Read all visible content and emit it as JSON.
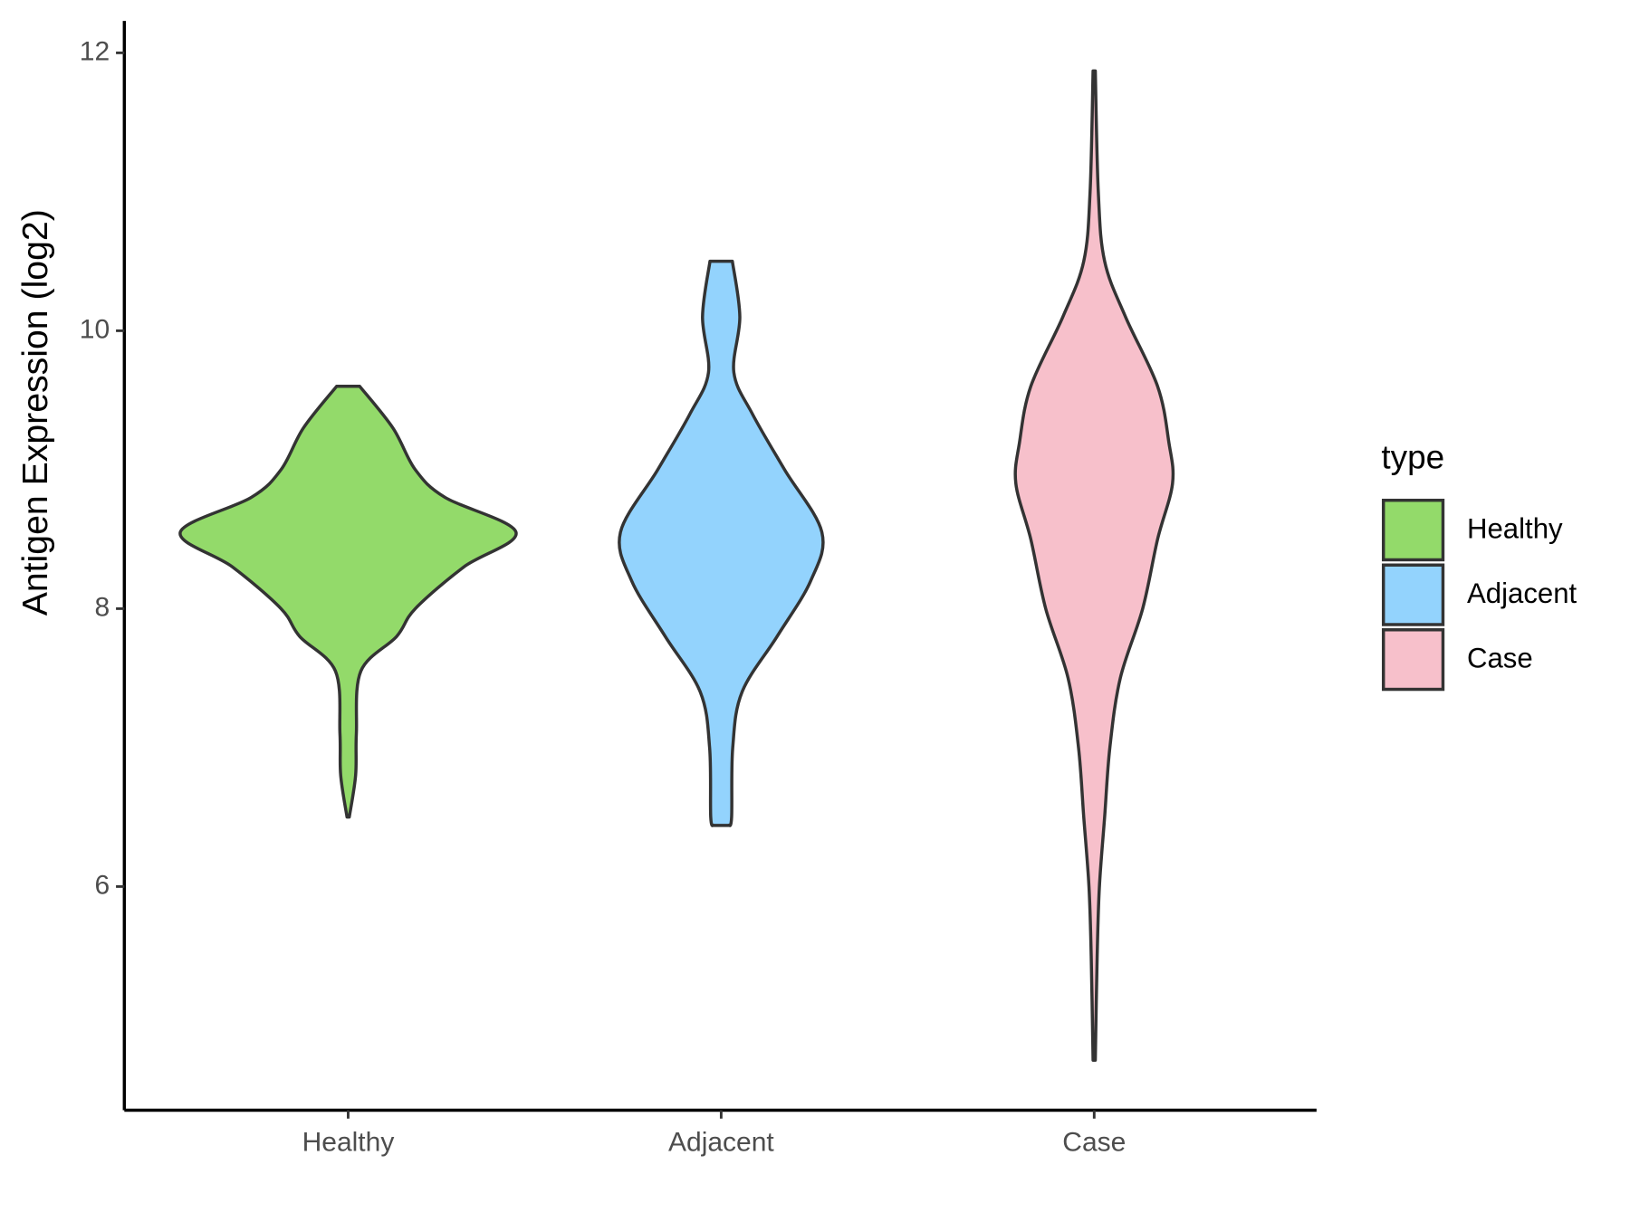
{
  "chart_data": {
    "type": "violin",
    "y_label": "Antigen Expression (log2)",
    "categories": [
      "Healthy",
      "Adjacent",
      "Case"
    ],
    "ylim": [
      4.39,
      12.23
    ],
    "yticks": [
      6,
      8,
      10,
      12
    ],
    "legend_title": "type",
    "legend": "right",
    "series": [
      {
        "name": "Healthy",
        "color": "#93da6a",
        "y": [
          9.6,
          9.3,
          9.0,
          8.8,
          8.55,
          8.3,
          8.0,
          7.8,
          7.55,
          7.1,
          6.8,
          6.5
        ],
        "width": [
          0.031,
          0.12,
          0.18,
          0.26,
          0.45,
          0.31,
          0.18,
          0.13,
          0.034,
          0.022,
          0.02,
          0.003
        ]
      },
      {
        "name": "Adjacent",
        "color": "#93d3fd",
        "y": [
          10.5,
          10.1,
          9.7,
          9.4,
          9.0,
          8.55,
          8.2,
          7.8,
          7.4,
          7.0,
          6.5,
          6.44
        ],
        "width": [
          0.03,
          0.05,
          0.034,
          0.084,
          0.17,
          0.27,
          0.24,
          0.15,
          0.056,
          0.031,
          0.028,
          0.02
        ]
      },
      {
        "name": "Case",
        "color": "#f7c0cb",
        "y": [
          11.87,
          11.0,
          10.5,
          10.1,
          9.6,
          9.2,
          8.9,
          8.5,
          8.0,
          7.5,
          7.0,
          6.5,
          6.0,
          5.5,
          4.75
        ],
        "width": [
          0.003,
          0.011,
          0.028,
          0.084,
          0.17,
          0.2,
          0.21,
          0.17,
          0.13,
          0.07,
          0.042,
          0.028,
          0.014,
          0.008,
          0.003
        ]
      }
    ]
  }
}
